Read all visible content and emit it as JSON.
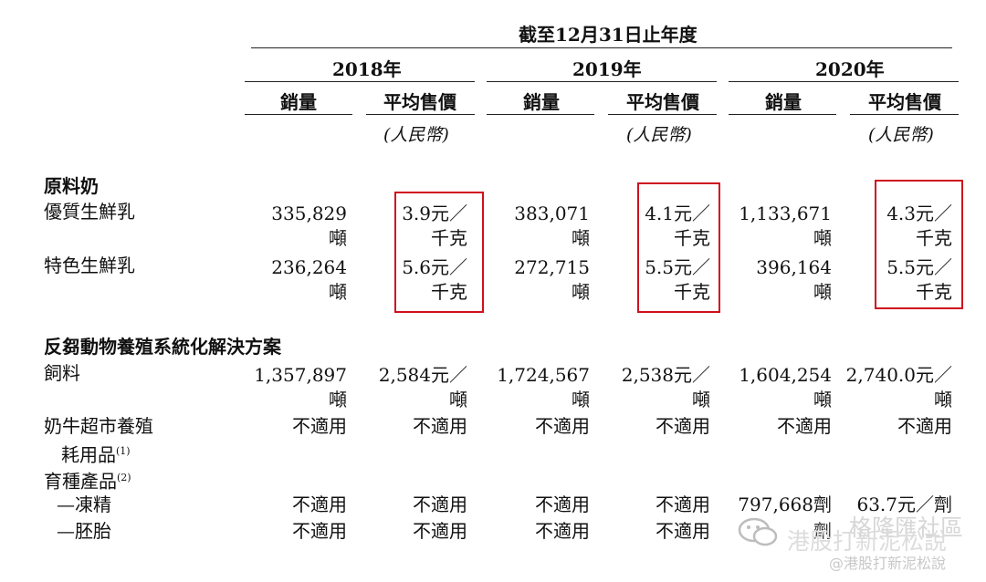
{
  "header": {
    "period": "截至12月31日止年度",
    "years": [
      "2018年",
      "2019年",
      "2020年"
    ],
    "col_volume": "銷量",
    "col_price": "平均售價",
    "price_unit": "(人民幣)"
  },
  "sections": {
    "raw_milk": "原料奶",
    "solutions": "反芻動物養殖系統化解決方案"
  },
  "rows": {
    "premium": {
      "label": "優質生鮮乳",
      "v2018": "335,829",
      "v2018_unit": "噸",
      "p2018": "3.9元／",
      "p2018_unit": "千克",
      "v2019": "383,071",
      "v2019_unit": "噸",
      "p2019": "4.1元／",
      "p2019_unit": "千克",
      "v2020": "1,133,671",
      "v2020_unit": "噸",
      "p2020": "4.3元／",
      "p2020_unit": "千克"
    },
    "specialty": {
      "label": "特色生鮮乳",
      "v2018": "236,264",
      "v2018_unit": "噸",
      "p2018": "5.6元／",
      "p2018_unit": "千克",
      "v2019": "272,715",
      "v2019_unit": "噸",
      "p2019": "5.5元／",
      "p2019_unit": "千克",
      "v2020": "396,164",
      "v2020_unit": "噸",
      "p2020": "5.5元／",
      "p2020_unit": "千克"
    },
    "feed": {
      "label": "飼料",
      "v2018": "1,357,897",
      "v2018_unit": "噸",
      "p2018": "2,584元／",
      "p2018_unit": "噸",
      "v2019": "1,724,567",
      "v2019_unit": "噸",
      "p2019": "2,538元／",
      "p2019_unit": "噸",
      "v2020": "1,604,254",
      "v2020_unit": "噸",
      "p2020": "2,740.0元／",
      "p2020_unit": "噸"
    },
    "consumables": {
      "label_line1": "奶牛超市養殖",
      "label_line2": "耗用品",
      "footnote": "(1)",
      "v2018": "不適用",
      "p2018": "不適用",
      "v2019": "不適用",
      "p2019": "不適用",
      "v2020": "不適用",
      "p2020": "不適用"
    },
    "breeding": {
      "label": "育種產品",
      "footnote": "(2)"
    },
    "semen": {
      "label": "—凍精",
      "v2018": "不適用",
      "p2018": "不適用",
      "v2019": "不適用",
      "p2019": "不適用",
      "v2020": "797,668劑",
      "p2020": "63.7元／劑"
    },
    "embryo": {
      "label": "—胚胎",
      "v2018": "不適用",
      "p2018": "不適用",
      "v2019": "不適用",
      "p2019": "不適用",
      "v2020_partial": "劑"
    }
  },
  "watermark": {
    "text1": "港股打新泥松說",
    "text2": "格隆匯社區",
    "text3": "@港股打新泥松說"
  }
}
